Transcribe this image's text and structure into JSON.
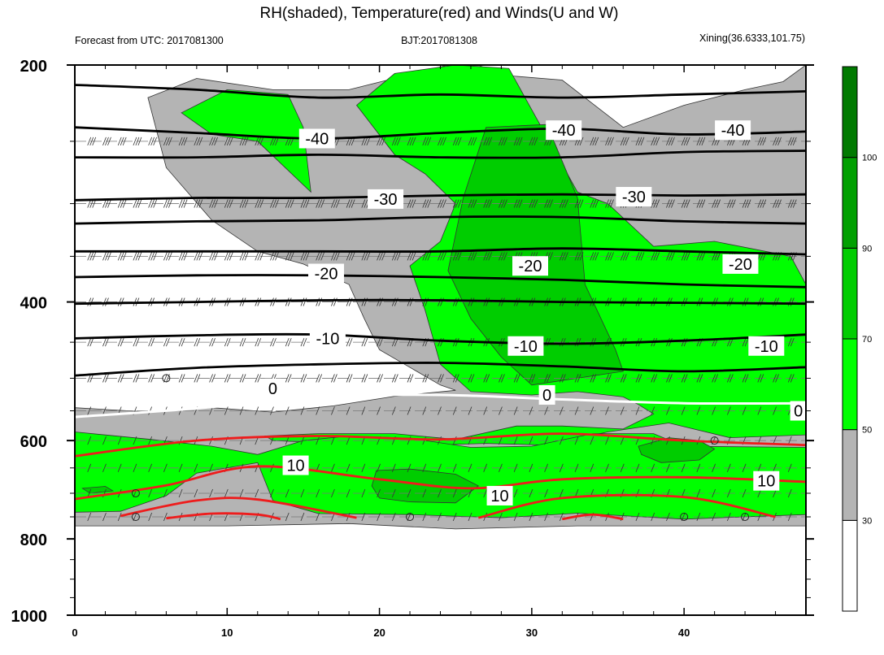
{
  "chart_data": {
    "type": "contour",
    "title": "RH(shaded), Temperature(red) and Winds(U and W)",
    "subtitle_left": "Forecast from UTC: 2017081300",
    "subtitle_center": "BJT:2017081308",
    "subtitle_right": "Xining(36.6333,101.75)",
    "x_axis": {
      "min": 0,
      "max": 48,
      "major_ticks": [
        0,
        10,
        20,
        30,
        40
      ],
      "tick_labels": [
        "0",
        "10",
        "20",
        "30",
        "40"
      ]
    },
    "y_axis": {
      "min": 200,
      "max": 1000,
      "inverted": true,
      "log_scale": true,
      "major_ticks": [
        200,
        400,
        600,
        800,
        1000
      ],
      "tick_labels": [
        "200",
        "400",
        "600",
        "800",
        "1000"
      ]
    },
    "colorbar": {
      "levels": [
        "30",
        "50",
        "70",
        "90",
        "100"
      ],
      "colors": [
        "#ffffff",
        "#b4b4b4",
        "#00ff00",
        "#00cd00",
        "#00a000",
        "#007a00"
      ]
    },
    "rh_regions": [
      {
        "level": "30-50",
        "color": "#b4b4b4",
        "points": [
          [
            4.8,
            220
          ],
          [
            8,
            208
          ],
          [
            13,
            215
          ],
          [
            18,
            215
          ],
          [
            24.5,
            200
          ],
          [
            26.5,
            200
          ],
          [
            28,
            206
          ],
          [
            32,
            209
          ],
          [
            36,
            240
          ],
          [
            40,
            225
          ],
          [
            44,
            215
          ],
          [
            46.5,
            210
          ],
          [
            48,
            200
          ],
          [
            48,
            770
          ],
          [
            40,
            770
          ],
          [
            33,
            770
          ],
          [
            25,
            777
          ],
          [
            18,
            765
          ],
          [
            10,
            770
          ],
          [
            0,
            770
          ],
          [
            0,
            545
          ],
          [
            5,
            552
          ],
          [
            9,
            545
          ],
          [
            13,
            552
          ],
          [
            17,
            542
          ],
          [
            21,
            527
          ],
          [
            25,
            518
          ],
          [
            24,
            510
          ],
          [
            20,
            460
          ],
          [
            19,
            420
          ],
          [
            18,
            380
          ],
          [
            15,
            358
          ],
          [
            12,
            345
          ],
          [
            9,
            315
          ],
          [
            6,
            270
          ]
        ]
      },
      {
        "level": "50-70",
        "color": "#00ff00",
        "points": [
          [
            7,
            230
          ],
          [
            10,
            215
          ],
          [
            14,
            218
          ],
          [
            15,
            240
          ],
          [
            15.5,
            290
          ],
          [
            12,
            250
          ],
          [
            9,
            245
          ]
        ]
      },
      {
        "level": "50-70",
        "color": "#00ff00",
        "points": [
          [
            18.5,
            225
          ],
          [
            21,
            205
          ],
          [
            25,
            200
          ],
          [
            28.5,
            202
          ],
          [
            30,
            228
          ],
          [
            33,
            290
          ],
          [
            35,
            300
          ],
          [
            38,
            340
          ],
          [
            42,
            335
          ],
          [
            47,
            350
          ],
          [
            48,
            380
          ],
          [
            48,
            590
          ],
          [
            43,
            595
          ],
          [
            39,
            570
          ],
          [
            35,
            585
          ],
          [
            31,
            608
          ],
          [
            27,
            605
          ],
          [
            21,
            610
          ],
          [
            13,
            600
          ],
          [
            12.5,
            592
          ],
          [
            16,
            588
          ],
          [
            21,
            588
          ],
          [
            25,
            598
          ],
          [
            29,
            575
          ],
          [
            32,
            575
          ],
          [
            36,
            580
          ],
          [
            38,
            555
          ],
          [
            37,
            540
          ],
          [
            36,
            528
          ],
          [
            33,
            520
          ],
          [
            30,
            525
          ],
          [
            26,
            520
          ],
          [
            24,
            480
          ],
          [
            23,
            410
          ],
          [
            22,
            360
          ],
          [
            24,
            335
          ],
          [
            25,
            300
          ],
          [
            23,
            275
          ],
          [
            21,
            260
          ]
        ]
      },
      {
        "level": "50-70",
        "color": "#00ff00",
        "points": [
          [
            0,
            585
          ],
          [
            5,
            598
          ],
          [
            9,
            610
          ],
          [
            12,
            625
          ],
          [
            15,
            600
          ],
          [
            18,
            592
          ],
          [
            22,
            596
          ],
          [
            26,
            612
          ],
          [
            30,
            610
          ],
          [
            34,
            588
          ],
          [
            38,
            588
          ],
          [
            40,
            610
          ],
          [
            48,
            612
          ],
          [
            48,
            745
          ],
          [
            40,
            755
          ],
          [
            33,
            742
          ],
          [
            28,
            752
          ],
          [
            22,
            745
          ],
          [
            16,
            743
          ],
          [
            13,
            715
          ],
          [
            12,
            640
          ],
          [
            8,
            660
          ],
          [
            6,
            705
          ],
          [
            3,
            738
          ],
          [
            0,
            740
          ]
        ]
      },
      {
        "level": "70-90",
        "color": "#00cd00",
        "points": [
          [
            25.5,
            295
          ],
          [
            27,
            240
          ],
          [
            31,
            238
          ],
          [
            33,
            295
          ],
          [
            33.5,
            380
          ],
          [
            35.5,
            460
          ],
          [
            36,
            490
          ],
          [
            33,
            500
          ],
          [
            30,
            510
          ],
          [
            28,
            470
          ],
          [
            26,
            420
          ],
          [
            24.5,
            365
          ]
        ]
      },
      {
        "level": "70-90",
        "color": "#00cd00",
        "points": [
          [
            19.8,
            655
          ],
          [
            22,
            652
          ],
          [
            25,
            662
          ],
          [
            26.5,
            685
          ],
          [
            25,
            720
          ],
          [
            22,
            718
          ],
          [
            20,
            710
          ],
          [
            19.5,
            685
          ]
        ]
      },
      {
        "level": "70-90",
        "color": "#00cd00",
        "points": [
          [
            37,
            610
          ],
          [
            39,
            595
          ],
          [
            41,
            600
          ],
          [
            42,
            615
          ],
          [
            41,
            635
          ],
          [
            38.5,
            640
          ],
          [
            37.2,
            625
          ]
        ]
      },
      {
        "level": "70-90",
        "color": "#00cd00",
        "points": [
          [
            0.5,
            690
          ],
          [
            2,
            686
          ],
          [
            2.5,
            695
          ],
          [
            1,
            700
          ]
        ]
      }
    ],
    "temperature_contours": [
      {
        "value": -40,
        "color": "#000000",
        "points": [
          [
            0,
            212
          ],
          [
            8,
            215
          ],
          [
            16,
            220
          ],
          [
            24,
            218
          ],
          [
            32,
            220
          ],
          [
            40,
            218
          ],
          [
            48,
            216
          ]
        ]
      },
      {
        "value": -40,
        "color": "#000000",
        "points": [
          [
            0,
            240
          ],
          [
            8,
            244
          ],
          [
            16,
            248
          ],
          [
            24,
            244
          ],
          [
            32,
            241
          ],
          [
            40,
            245
          ],
          [
            48,
            243
          ]
        ]
      },
      {
        "value": -40,
        "color": "#000000",
        "points": [
          [
            0,
            262
          ],
          [
            8,
            262
          ],
          [
            16,
            260
          ],
          [
            24,
            262
          ],
          [
            32,
            262
          ],
          [
            40,
            258
          ],
          [
            48,
            257
          ]
        ]
      },
      {
        "value": -30,
        "color": "#000000",
        "points": [
          [
            0,
            297
          ],
          [
            8,
            295
          ],
          [
            16,
            295
          ],
          [
            24,
            293
          ],
          [
            32,
            292
          ],
          [
            40,
            293
          ],
          [
            48,
            292
          ]
        ]
      },
      {
        "value": -30,
        "color": "#000000",
        "points": [
          [
            0,
            318
          ],
          [
            8,
            316
          ],
          [
            16,
            315
          ],
          [
            24,
            312
          ],
          [
            32,
            312
          ],
          [
            40,
            316
          ],
          [
            48,
            318
          ]
        ]
      },
      {
        "value": -20,
        "color": "#000000",
        "points": [
          [
            0,
            345
          ],
          [
            8,
            345
          ],
          [
            16,
            345
          ],
          [
            24,
            345
          ],
          [
            32,
            342
          ],
          [
            40,
            345
          ],
          [
            48,
            348
          ]
        ]
      },
      {
        "value": -20,
        "color": "#000000",
        "points": [
          [
            0,
            372
          ],
          [
            8,
            370
          ],
          [
            16,
            370
          ],
          [
            24,
            372
          ],
          [
            32,
            375
          ],
          [
            40,
            380
          ],
          [
            48,
            383
          ]
        ]
      },
      {
        "value": -10,
        "color": "#000000",
        "points": [
          [
            0,
            402
          ],
          [
            8,
            400
          ],
          [
            16,
            398
          ],
          [
            24,
            398
          ],
          [
            32,
            400
          ],
          [
            40,
            401
          ],
          [
            48,
            402
          ]
        ]
      },
      {
        "value": -10,
        "color": "#000000",
        "points": [
          [
            0,
            445
          ],
          [
            8,
            441
          ],
          [
            16,
            440
          ],
          [
            24,
            448
          ],
          [
            32,
            452
          ],
          [
            40,
            448
          ],
          [
            48,
            440
          ]
        ]
      },
      {
        "value": -10,
        "color": "#000000",
        "points": [
          [
            0,
            496
          ],
          [
            8,
            485
          ],
          [
            16,
            480
          ],
          [
            24,
            478
          ],
          [
            32,
            483
          ],
          [
            40,
            490
          ],
          [
            48,
            484
          ]
        ]
      },
      {
        "value": 0,
        "color": "#ffffff",
        "points": [
          [
            0,
            560
          ],
          [
            8,
            546
          ],
          [
            16,
            528
          ],
          [
            24,
            525
          ],
          [
            32,
            532
          ],
          [
            40,
            538
          ],
          [
            48,
            538
          ]
        ]
      },
      {
        "value": 10,
        "color": "#ee1c1c",
        "points": [
          [
            0,
            628
          ],
          [
            8,
            600
          ],
          [
            16,
            592
          ],
          [
            24,
            598
          ],
          [
            32,
            588
          ],
          [
            40,
            600
          ],
          [
            48,
            608
          ]
        ]
      },
      {
        "value": 10,
        "color": "#ee1c1c",
        "points": [
          [
            0,
            712
          ],
          [
            6,
            684
          ],
          [
            12,
            647
          ],
          [
            20,
            672
          ],
          [
            26,
            690
          ],
          [
            32,
            672
          ],
          [
            40,
            668
          ],
          [
            48,
            677
          ]
        ]
      },
      {
        "value": 10,
        "color": "#ee1c1c",
        "points": [
          [
            3,
            748
          ],
          [
            8,
            715
          ],
          [
            12,
            713
          ],
          [
            18.5,
            752
          ]
        ]
      },
      {
        "value": 10,
        "color": "#ee1c1c",
        "points": [
          [
            26.5,
            752
          ],
          [
            32,
            710
          ],
          [
            40,
            708
          ],
          [
            46,
            750
          ]
        ]
      },
      {
        "value": 10,
        "color": "#ee1c1c",
        "points": [
          [
            6,
            753
          ],
          [
            9,
            743
          ],
          [
            12,
            745
          ],
          [
            13.5,
            755
          ]
        ]
      },
      {
        "value": 10,
        "color": "#ee1c1c",
        "points": [
          [
            32,
            755
          ],
          [
            34,
            745
          ],
          [
            36,
            755
          ]
        ]
      }
    ],
    "contour_labels": [
      {
        "text": "-40",
        "x": 15.9,
        "y": 248
      },
      {
        "text": "-40",
        "x": 32.1,
        "y": 242
      },
      {
        "text": "-40",
        "x": 43.2,
        "y": 242
      },
      {
        "text": "-30",
        "x": 20.4,
        "y": 296
      },
      {
        "text": "-30",
        "x": 36.7,
        "y": 294
      },
      {
        "text": "-20",
        "x": 16.5,
        "y": 368
      },
      {
        "text": "-20",
        "x": 29.9,
        "y": 360
      },
      {
        "text": "-20",
        "x": 43.7,
        "y": 358
      },
      {
        "text": "-10",
        "x": 16.6,
        "y": 445
      },
      {
        "text": "-10",
        "x": 29.6,
        "y": 455
      },
      {
        "text": "-10",
        "x": 45.4,
        "y": 455
      },
      {
        "text": "0",
        "x": 13,
        "y": 515
      },
      {
        "text": "0",
        "x": 31,
        "y": 525
      },
      {
        "text": "0",
        "x": 47.5,
        "y": 550
      },
      {
        "text": "10",
        "x": 14.5,
        "y": 645
      },
      {
        "text": "10",
        "x": 27.9,
        "y": 705
      },
      {
        "text": "10",
        "x": 45.4,
        "y": 675
      }
    ],
    "wind_levels": [
      250,
      300,
      350,
      400,
      450,
      500,
      550,
      600,
      650,
      700,
      750
    ],
    "calm_markers": [
      {
        "x": 6,
        "y": 500
      },
      {
        "x": 42,
        "y": 600
      },
      {
        "x": 4,
        "y": 700
      },
      {
        "x": 4,
        "y": 750
      },
      {
        "x": 22,
        "y": 750
      },
      {
        "x": 40,
        "y": 750
      },
      {
        "x": 44,
        "y": 750
      }
    ]
  }
}
